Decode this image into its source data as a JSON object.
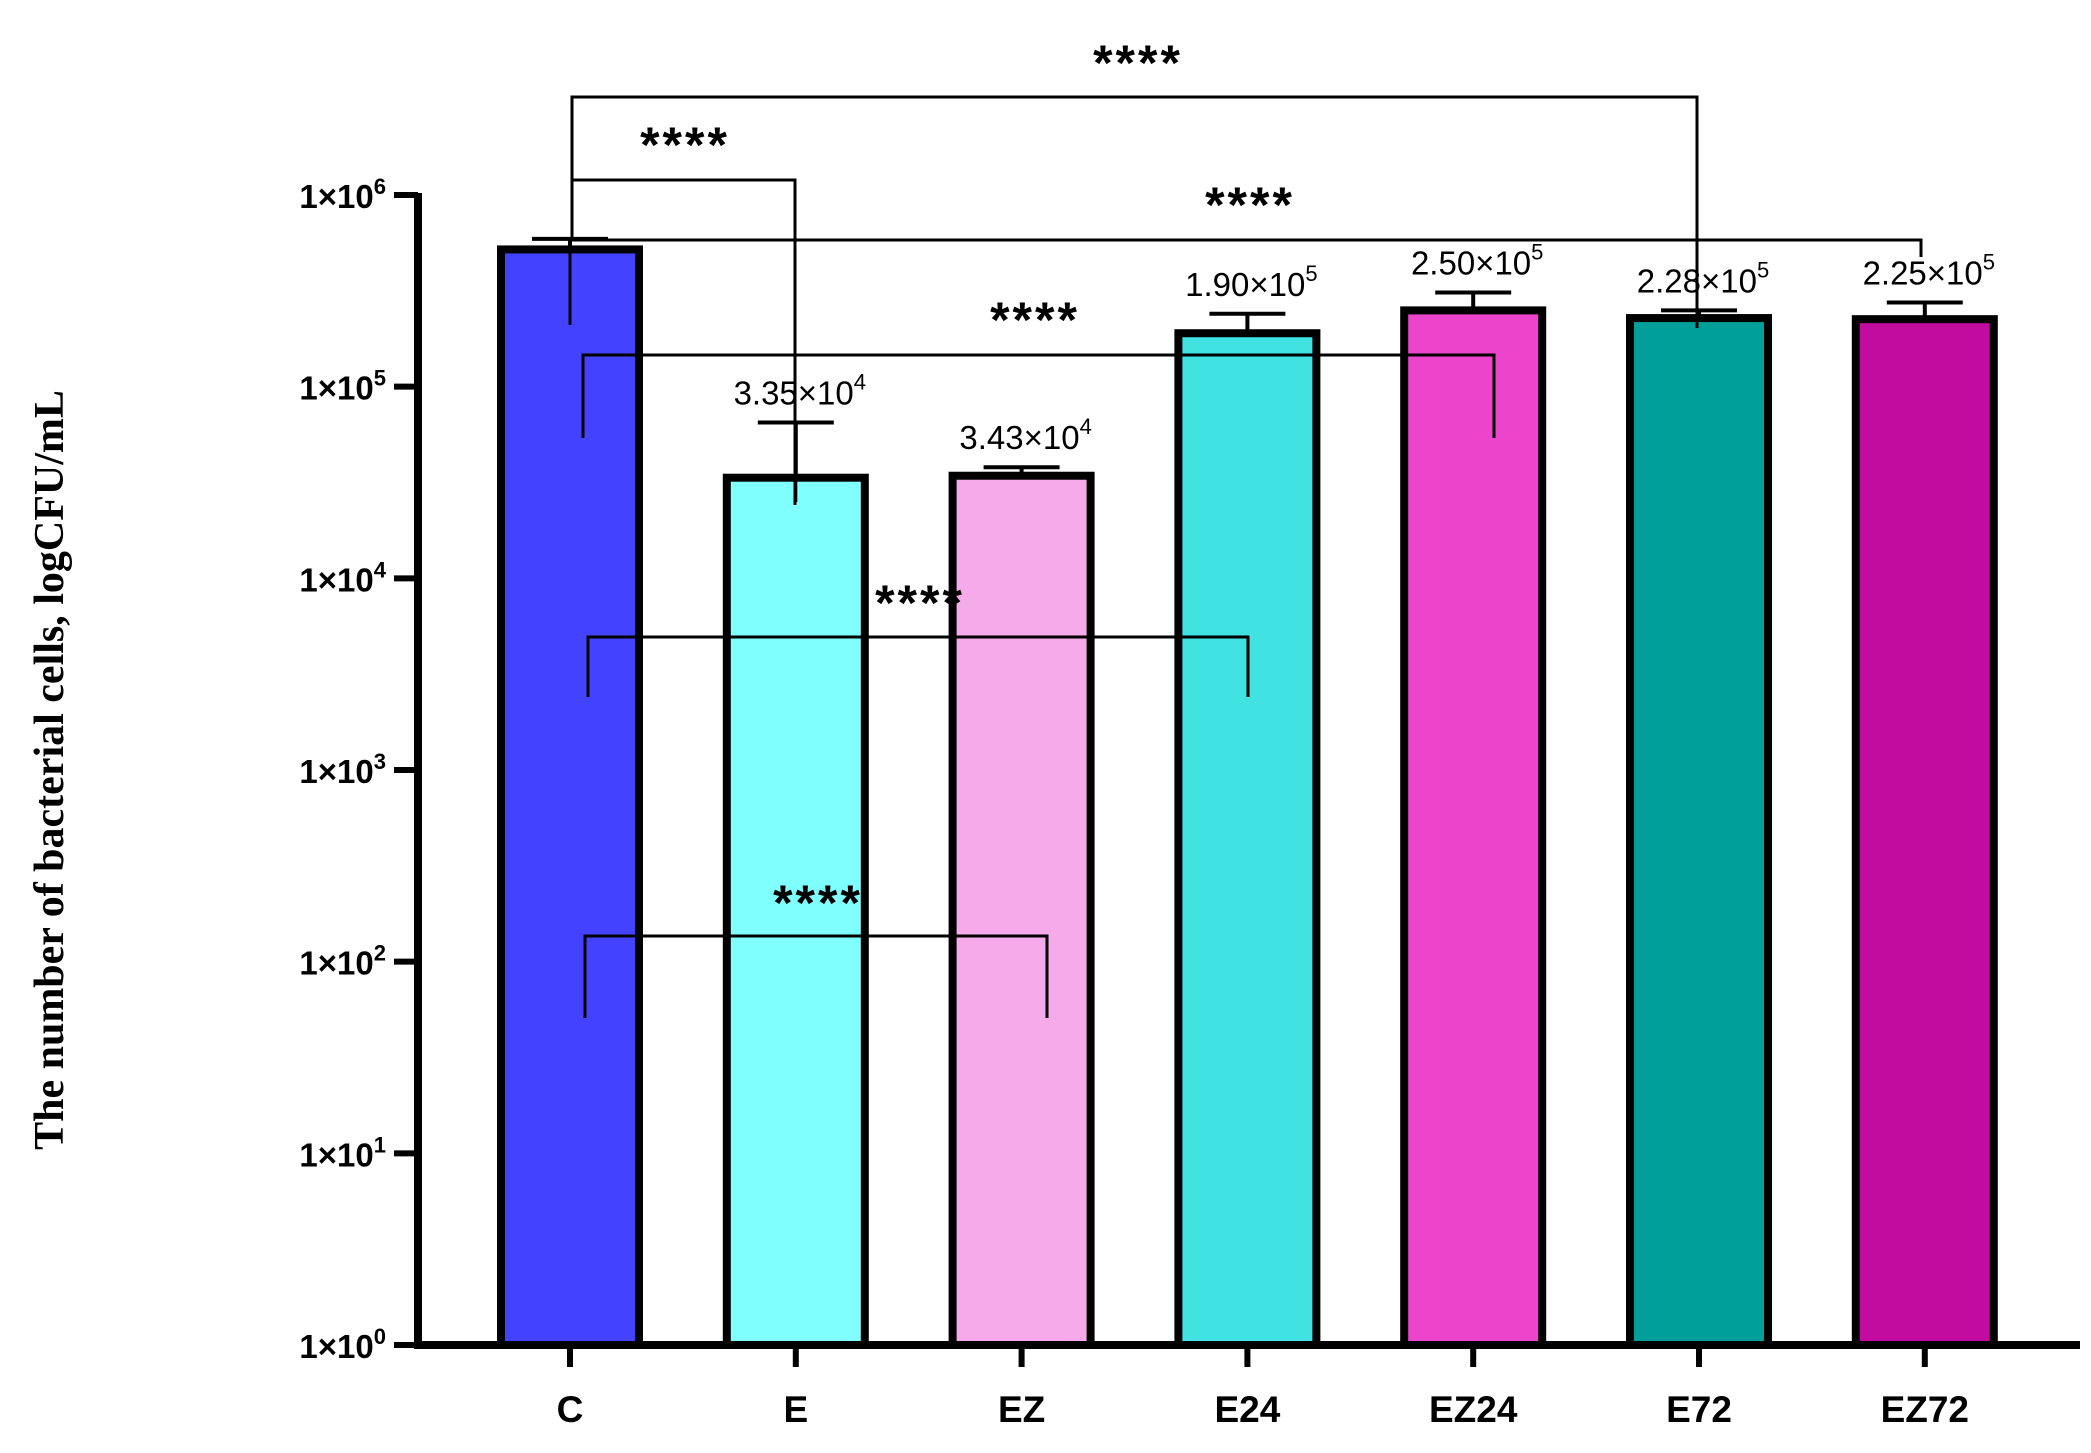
{
  "chart_data": {
    "type": "bar",
    "scale": "log10",
    "ylabel": "The number of bacterial cells, logCFU/mL",
    "ylim": [
      1,
      1000000
    ],
    "yticks": [
      {
        "base": "1×10",
        "exp": "0"
      },
      {
        "base": "1×10",
        "exp": "1"
      },
      {
        "base": "1×10",
        "exp": "2"
      },
      {
        "base": "1×10",
        "exp": "3"
      },
      {
        "base": "1×10",
        "exp": "4"
      },
      {
        "base": "1×10",
        "exp": "5"
      },
      {
        "base": "1×10",
        "exp": "6"
      }
    ],
    "categories": [
      "C",
      "E",
      "EZ",
      "E24",
      "EZ24",
      "E72",
      "EZ72"
    ],
    "values": [
      520000,
      33500,
      34300,
      190000,
      250000,
      228000,
      225000
    ],
    "error_upper": [
      590000,
      65000,
      38000,
      240000,
      310000,
      250000,
      275000
    ],
    "error_lower": [
      210000,
      25000,
      null,
      null,
      null,
      null,
      null
    ],
    "colors": [
      "#4343ff",
      "#80ffff",
      "#f5abe9",
      "#40e2e2",
      "#ec45cb",
      "#009f99",
      "#c10c9f"
    ],
    "data_labels": [
      null,
      {
        "mantissa": "3.35×10",
        "exp": "4"
      },
      {
        "mantissa": "3.43×10",
        "exp": "4"
      },
      {
        "mantissa": "1.90×10",
        "exp": "5"
      },
      {
        "mantissa": "2.50×10",
        "exp": "5"
      },
      {
        "mantissa": "2.28×10",
        "exp": "5"
      },
      {
        "mantissa": "2.25×10",
        "exp": "5"
      }
    ],
    "significance": [
      {
        "from": "C",
        "to": "E72",
        "label": "****"
      },
      {
        "from": "C",
        "to": "E",
        "label": "****"
      },
      {
        "from": "C",
        "to": "EZ72",
        "label": "****"
      },
      {
        "from": "C",
        "to": "EZ24",
        "label": "****"
      },
      {
        "from": "C",
        "to": "E24",
        "label": "****"
      },
      {
        "from": "C",
        "to": "EZ",
        "label": "****"
      }
    ]
  }
}
